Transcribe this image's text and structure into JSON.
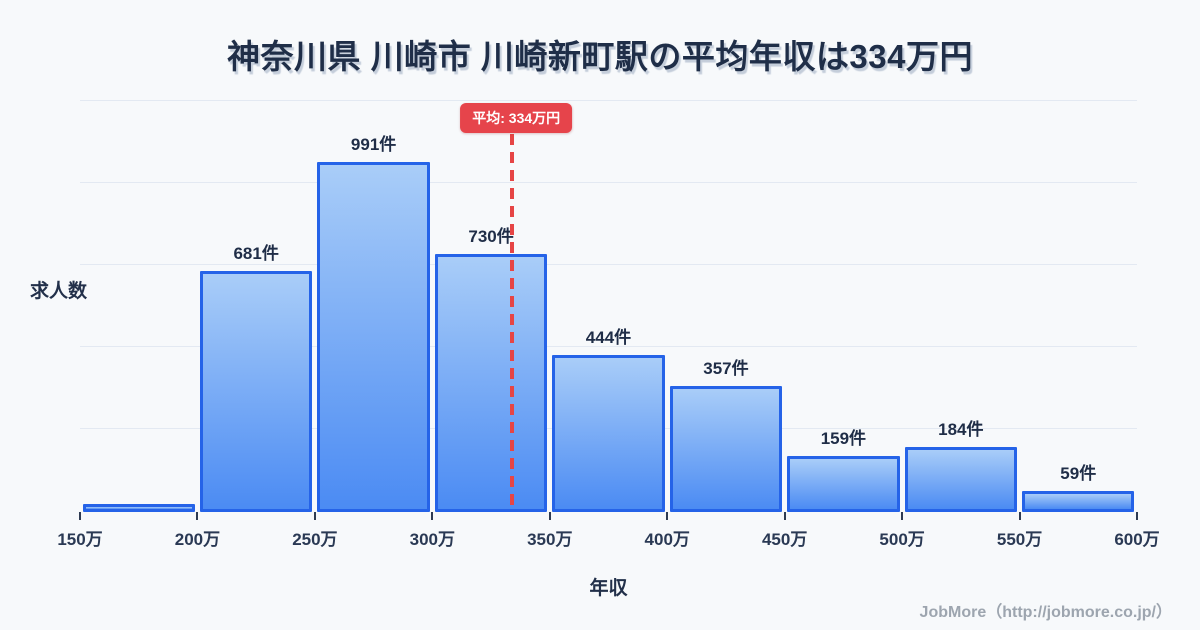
{
  "title": "神奈川県 川崎市 川崎新町駅の平均年収は334万円",
  "footer": "JobMore（http://jobmore.co.jp/）",
  "chart_data": {
    "type": "bar",
    "title": "神奈川県 川崎市 川崎新町駅の平均年収は334万円",
    "xlabel": "年収",
    "ylabel": "求人数",
    "x_tick_labels": [
      "150万",
      "200万",
      "250万",
      "300万",
      "350万",
      "400万",
      "450万",
      "500万",
      "550万",
      "600万"
    ],
    "x_range": [
      150,
      600
    ],
    "bin_width": 50,
    "categories": [
      "150万-200万",
      "200万-250万",
      "250万-300万",
      "300万-350万",
      "350万-400万",
      "400万-450万",
      "450万-500万",
      "500万-550万",
      "550万-600万"
    ],
    "values": [
      23,
      681,
      991,
      730,
      444,
      357,
      159,
      184,
      59
    ],
    "bar_labels": [
      "",
      "681件",
      "991件",
      "730件",
      "444件",
      "357件",
      "159件",
      "184件",
      "59件"
    ],
    "value_note": "first bin shows a short bar with no count label; its value is estimated from bar height",
    "y_scale_max": 991,
    "average_line": {
      "x": 334,
      "label": "平均: 334万円"
    },
    "grid": true,
    "legend": false
  },
  "colors": {
    "background": "#f7f9fb",
    "title_text": "#1f2e48",
    "bar_fill_top": "#a9cdf8",
    "bar_fill_bottom": "#4b8bf3",
    "bar_border": "#2563e8",
    "gridline": "#e3e9f2",
    "tick": "#2e3b52",
    "bar_label_text": "#1f2d47",
    "average_red": "#e6444b",
    "footer_text": "#9da5af"
  }
}
